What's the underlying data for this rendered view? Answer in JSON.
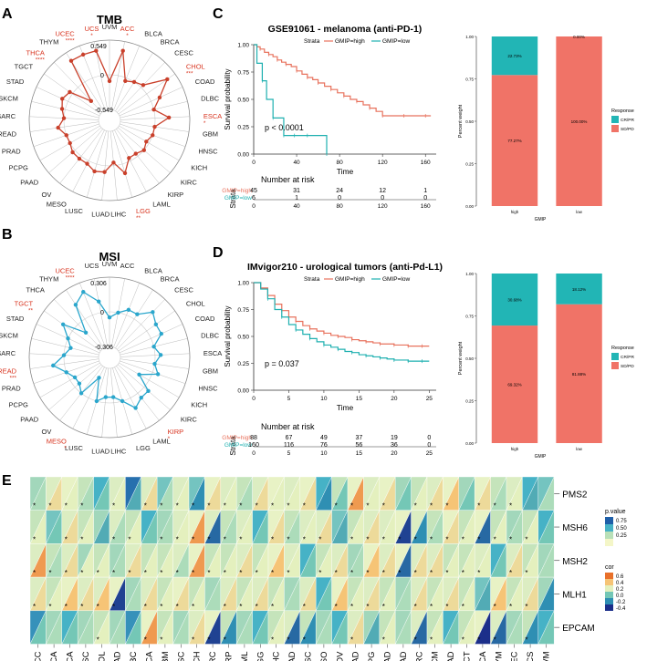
{
  "panel_labels": {
    "a": "A",
    "b": "B",
    "c": "C",
    "d": "D",
    "e": "E"
  },
  "colors": {
    "red": "#e8725d",
    "teal": "#1fb0b0",
    "tmb_line": "#c9402b",
    "msi_line": "#2aa6cc",
    "label_red": "#d8341f",
    "bar_red": "#f07367",
    "bar_teal": "#22b5b5"
  },
  "chart_data": [
    {
      "id": "tmb",
      "type": "radar",
      "title": "TMB",
      "range": [
        -0.549,
        0.549
      ],
      "ring_labels": [
        "-0.549",
        "0",
        "0.549"
      ],
      "categories": [
        "UVM",
        "ACC",
        "BLCA",
        "BRCA",
        "CESC",
        "CHOL",
        "COAD",
        "DLBC",
        "ESCA",
        "GBM",
        "HNSC",
        "KICH",
        "KIRC",
        "KIRP",
        "LAML",
        "LGG",
        "LIHC",
        "LUAD",
        "LUSC",
        "MESO",
        "OV",
        "PAAD",
        "PCPG",
        "PRAD",
        "READ",
        "SARC",
        "SKCM",
        "STAD",
        "TGCT",
        "THCA",
        "THYM",
        "UCEC",
        "UCS"
      ],
      "values": [
        -0.1,
        0.4,
        -0.05,
        0.0,
        0.05,
        0.4,
        0.15,
        0.0,
        0.22,
        0.0,
        0.0,
        -0.05,
        0.0,
        -0.05,
        -0.05,
        0.15,
        -0.05,
        0.1,
        0.12,
        0.05,
        0.05,
        0.05,
        0.0,
        0.0,
        0.1,
        0.0,
        0.05,
        0.1,
        0.05,
        -0.3,
        0.4,
        0.4,
        0.4
      ],
      "significant": {
        "ACC": "*",
        "CHOL": "***",
        "ESCA": "*",
        "LGG": "**",
        "THCA": "****",
        "UCEC": "****",
        "UCS": "*"
      }
    },
    {
      "id": "msi",
      "type": "radar",
      "title": "MSI",
      "range": [
        -0.306,
        0.306
      ],
      "ring_labels": [
        "-0.306",
        "0",
        "0.306"
      ],
      "categories": [
        "UVM",
        "ACC",
        "BLCA",
        "BRCA",
        "CESC",
        "CHOL",
        "COAD",
        "DLBC",
        "ESCA",
        "GBM",
        "HNSC",
        "KICH",
        "KIRC",
        "KIRP",
        "LAML",
        "LGG",
        "LIHC",
        "LUAD",
        "LUSC",
        "MESO",
        "OV",
        "PAAD",
        "PCPG",
        "PRAD",
        "READ",
        "SARC",
        "SKCM",
        "STAD",
        "TGCT",
        "THCA",
        "THYM",
        "UCEC",
        "UCS"
      ],
      "values": [
        -0.05,
        0.0,
        0.05,
        0.05,
        0.15,
        0.1,
        0.1,
        0.0,
        0.05,
        0.0,
        0.05,
        -0.1,
        0.05,
        0.05,
        0.1,
        0.0,
        -0.05,
        -0.05,
        0.0,
        -0.2,
        0.0,
        -0.05,
        -0.05,
        0.0,
        0.1,
        0.0,
        -0.05,
        0.0,
        0.1,
        -0.1,
        0.15,
        0.22,
        0.1
      ],
      "significant": {
        "KIRP": "*",
        "MESO": "*",
        "READ": "***",
        "TGCT": "**",
        "UCEC": "****"
      }
    },
    {
      "id": "km_c",
      "type": "line",
      "title": "GSE91061 - melanoma (anti-PD-1)",
      "legend_title": "Strata",
      "legend": [
        "GMIP=high",
        "GMIP=low"
      ],
      "xlabel": "Time",
      "ylabel": "Survival probability",
      "xlim": [
        0,
        170
      ],
      "ylim": [
        0,
        1
      ],
      "xticks": [
        "0",
        "40",
        "80",
        "120",
        "160"
      ],
      "yticks": [
        "0.00",
        "0.25",
        "0.50",
        "0.75",
        "1.00"
      ],
      "pvalue": "p < 0.0001",
      "series": [
        {
          "name": "GMIP=high",
          "x": [
            0,
            3,
            6,
            10,
            14,
            18,
            22,
            26,
            30,
            35,
            40,
            45,
            50,
            55,
            60,
            66,
            72,
            78,
            84,
            90,
            96,
            102,
            108,
            114,
            120,
            130,
            140,
            150,
            160,
            165
          ],
          "y": [
            1,
            0.98,
            0.96,
            0.93,
            0.91,
            0.89,
            0.86,
            0.84,
            0.82,
            0.8,
            0.76,
            0.73,
            0.7,
            0.68,
            0.65,
            0.62,
            0.59,
            0.56,
            0.53,
            0.5,
            0.48,
            0.45,
            0.42,
            0.39,
            0.35,
            0.35,
            0.35,
            0.35,
            0.35,
            0.35
          ]
        },
        {
          "name": "GMIP=low",
          "x": [
            0,
            3,
            8,
            12,
            18,
            22,
            28,
            33,
            38,
            45,
            50,
            60,
            68
          ],
          "y": [
            1,
            0.83,
            0.67,
            0.5,
            0.33,
            0.33,
            0.17,
            0.17,
            0.17,
            0.17,
            0.17,
            0.17,
            0.0
          ]
        }
      ],
      "risk_table": {
        "title": "Number at risk",
        "row_label": "Strata",
        "rows": [
          {
            "name": "GMIP=high",
            "values": [
              "45",
              "31",
              "24",
              "12",
              "1"
            ]
          },
          {
            "name": "GMIP=low",
            "values": [
              "6",
              "1",
              "0",
              "0",
              "0"
            ]
          }
        ]
      }
    },
    {
      "id": "bar_c",
      "type": "bar",
      "xlabel": "GMIP",
      "ylabel": "Percent weight",
      "categories": [
        "high",
        "low"
      ],
      "yticks": [
        "0.00",
        "0.25",
        "0.50",
        "0.75",
        "1.00"
      ],
      "series": [
        {
          "name": "SD/PD",
          "values": [
            77.27,
            100.0
          ],
          "labels": [
            "77.27%",
            "100.00%"
          ]
        },
        {
          "name": "CR/PR",
          "values": [
            22.73,
            0.0
          ],
          "labels": [
            "22.73%",
            "0.00%"
          ]
        }
      ],
      "legend_title": "Response",
      "legend": [
        "CR/PR",
        "SD/PD"
      ]
    },
    {
      "id": "km_d",
      "type": "line",
      "title": "IMvigor210 - urological tumors (anti-Pd-L1)",
      "legend_title": "Strata",
      "legend": [
        "GMIP=high",
        "GMIP=low"
      ],
      "xlabel": "Time",
      "ylabel": "Survival probability",
      "xlim": [
        0,
        26
      ],
      "ylim": [
        0,
        1
      ],
      "xticks": [
        "0",
        "5",
        "10",
        "15",
        "20",
        "25"
      ],
      "yticks": [
        "0.00",
        "0.25",
        "0.50",
        "0.75",
        "1.00"
      ],
      "pvalue": "p = 0.037",
      "series": [
        {
          "name": "GMIP=high",
          "x": [
            0,
            1,
            2,
            3,
            4,
            5,
            6,
            7,
            8,
            9,
            10,
            11,
            12,
            13,
            14,
            15,
            16,
            17,
            18,
            19,
            20,
            21,
            22,
            23,
            24,
            25
          ],
          "y": [
            1,
            0.95,
            0.88,
            0.8,
            0.74,
            0.68,
            0.64,
            0.6,
            0.57,
            0.55,
            0.53,
            0.51,
            0.5,
            0.49,
            0.47,
            0.46,
            0.45,
            0.44,
            0.43,
            0.43,
            0.42,
            0.42,
            0.41,
            0.41,
            0.41,
            0.41
          ]
        },
        {
          "name": "GMIP=low",
          "x": [
            0,
            1,
            2,
            3,
            4,
            5,
            6,
            7,
            8,
            9,
            10,
            11,
            12,
            13,
            14,
            15,
            16,
            17,
            18,
            19,
            20,
            21,
            22,
            23,
            24,
            25
          ],
          "y": [
            1,
            0.94,
            0.85,
            0.75,
            0.68,
            0.61,
            0.56,
            0.52,
            0.48,
            0.45,
            0.42,
            0.4,
            0.38,
            0.36,
            0.35,
            0.33,
            0.32,
            0.31,
            0.3,
            0.29,
            0.28,
            0.28,
            0.27,
            0.27,
            0.27,
            0.27
          ]
        }
      ],
      "risk_table": {
        "title": "Number at risk",
        "row_label": "Strata",
        "rows": [
          {
            "name": "GMIP=high",
            "values": [
              "88",
              "67",
              "49",
              "37",
              "19",
              "0"
            ]
          },
          {
            "name": "GMIP=low",
            "values": [
              "160",
              "116",
              "76",
              "56",
              "36",
              "0"
            ]
          }
        ]
      }
    },
    {
      "id": "bar_d",
      "type": "bar",
      "xlabel": "GMIP",
      "ylabel": "Percent weight",
      "categories": [
        "high",
        "low"
      ],
      "yticks": [
        "0.00",
        "0.25",
        "0.50",
        "0.75",
        "1.00"
      ],
      "series": [
        {
          "name": "SD/PD",
          "values": [
            69.32,
            81.88
          ],
          "labels": [
            "69.32%",
            "81.88%"
          ]
        },
        {
          "name": "CR/PR",
          "values": [
            30.68,
            18.12
          ],
          "labels": [
            "30.68%",
            "18.12%"
          ]
        }
      ],
      "legend_title": "Response",
      "legend": [
        "CR/PR",
        "SD/PD"
      ]
    },
    {
      "id": "heat_e",
      "type": "heatmap",
      "columns": [
        "ACC",
        "BLCA",
        "BRCA",
        "CESC",
        "CHOL",
        "COAD",
        "DLBC",
        "ESCA",
        "GBM",
        "HNSC",
        "KICH",
        "KIRC",
        "KIRP",
        "LAML",
        "LGG",
        "LIHC",
        "LUAD",
        "LUSC",
        "MESO",
        "OV",
        "PAAD",
        "PCPG",
        "PRAD",
        "READ",
        "SARC",
        "SKCM",
        "STAD",
        "TGCT",
        "THCA",
        "THYM",
        "UCEC",
        "UCS",
        "UVM"
      ],
      "rows": [
        "PMS2",
        "MSH6",
        "MSH2",
        "MLH1",
        "EPCAM"
      ],
      "cor": [
        [
          0.1,
          0.3,
          0.2,
          0.1,
          0.0,
          0.2,
          -0.1,
          0.3,
          0.1,
          0.2,
          -0.2,
          0.3,
          0.2,
          0.1,
          0.3,
          0.2,
          0.2,
          0.3,
          -0.2,
          0.0,
          0.5,
          0.2,
          0.3,
          0.0,
          0.2,
          0.3,
          0.4,
          0.0,
          0.3,
          0.1,
          0.2,
          -0.1,
          0.1
        ],
        [
          0.2,
          0.0,
          0.3,
          0.2,
          -0.1,
          0.1,
          0.2,
          0.0,
          0.1,
          0.2,
          0.5,
          -0.3,
          0.1,
          0.2,
          0.0,
          0.3,
          0.1,
          0.2,
          0.3,
          -0.1,
          0.2,
          0.3,
          0.2,
          -0.4,
          -0.2,
          0.1,
          0.3,
          0.2,
          -0.3,
          0.2,
          0.1,
          0.2,
          0.0
        ],
        [
          0.5,
          0.1,
          0.3,
          0.2,
          0.2,
          0.1,
          0.3,
          0.2,
          0.2,
          0.1,
          0.5,
          0.2,
          0.2,
          0.3,
          0.2,
          0.4,
          0.2,
          0.0,
          0.2,
          0.3,
          0.1,
          0.4,
          0.3,
          -0.3,
          0.3,
          0.3,
          0.2,
          0.2,
          0.2,
          0.0,
          0.3,
          0.2,
          0.1
        ],
        [
          0.3,
          0.2,
          0.4,
          0.3,
          0.4,
          -0.4,
          0.1,
          0.3,
          0.2,
          0.3,
          0.2,
          0.1,
          0.3,
          0.2,
          0.3,
          0.2,
          0.1,
          0.3,
          0.0,
          0.4,
          0.2,
          0.3,
          0.2,
          0.1,
          0.3,
          0.2,
          0.3,
          0.2,
          -0.1,
          0.4,
          0.2,
          0.3,
          -0.2
        ],
        [
          0.0,
          0.1,
          0.0,
          0.1,
          0.2,
          0.1,
          0.0,
          0.5,
          0.2,
          0.1,
          0.3,
          -0.4,
          -0.2,
          0.1,
          0.0,
          0.2,
          -0.3,
          -0.2,
          0.1,
          0.0,
          0.3,
          -0.1,
          0.2,
          0.1,
          -0.3,
          0.2,
          0.0,
          0.2,
          -0.5,
          -0.3,
          0.1,
          -0.2,
          0.0
        ]
      ],
      "pval": [
        [
          0.3,
          0.1,
          0.05,
          0.2,
          0.5,
          0.1,
          0.7,
          0.1,
          0.4,
          0.1,
          0.4,
          0.05,
          0.1,
          0.2,
          0.1,
          0.05,
          0.1,
          0.05,
          0.5,
          0.2,
          0.05,
          0.1,
          0.05,
          0.3,
          0.2,
          0.1,
          0.05,
          0.3,
          0.05,
          0.2,
          0.1,
          0.5,
          0.4
        ],
        [
          0.2,
          0.4,
          0.1,
          0.2,
          0.3,
          0.1,
          0.2,
          0.5,
          0.3,
          0.1,
          0.05,
          0.1,
          0.2,
          0.1,
          0.5,
          0.05,
          0.2,
          0.1,
          0.1,
          0.4,
          0.2,
          0.1,
          0.1,
          0.05,
          0.1,
          0.2,
          0.05,
          0.2,
          0.05,
          0.2,
          0.3,
          0.2,
          0.5
        ],
        [
          0.1,
          0.2,
          0.1,
          0.3,
          0.2,
          0.3,
          0.1,
          0.2,
          0.2,
          0.1,
          0.05,
          0.2,
          0.2,
          0.1,
          0.2,
          0.05,
          0.1,
          0.5,
          0.2,
          0.1,
          0.3,
          0.05,
          0.1,
          0.05,
          0.1,
          0.1,
          0.2,
          0.2,
          0.1,
          0.5,
          0.1,
          0.2,
          0.3
        ],
        [
          0.1,
          0.2,
          0.05,
          0.1,
          0.1,
          0.05,
          0.3,
          0.1,
          0.2,
          0.05,
          0.2,
          0.3,
          0.1,
          0.2,
          0.1,
          0.2,
          0.3,
          0.1,
          0.5,
          0.05,
          0.2,
          0.1,
          0.2,
          0.3,
          0.1,
          0.2,
          0.1,
          0.2,
          0.4,
          0.05,
          0.2,
          0.1,
          0.3
        ],
        [
          0.6,
          0.3,
          0.5,
          0.3,
          0.2,
          0.3,
          0.6,
          0.05,
          0.2,
          0.3,
          0.1,
          0.05,
          0.2,
          0.3,
          0.5,
          0.2,
          0.1,
          0.2,
          0.3,
          0.5,
          0.1,
          0.3,
          0.2,
          0.3,
          0.1,
          0.2,
          0.5,
          0.2,
          0.05,
          0.1,
          0.3,
          0.2,
          0.5
        ]
      ],
      "stars": [
        [
          1,
          1,
          1,
          1,
          0,
          1,
          0,
          1,
          1,
          1,
          1,
          1,
          1,
          1,
          1,
          1,
          1,
          1,
          0,
          1,
          1,
          1,
          1,
          0,
          1,
          1,
          1,
          0,
          1,
          1,
          1,
          0,
          0
        ],
        [
          1,
          0,
          1,
          1,
          0,
          1,
          1,
          0,
          1,
          1,
          1,
          1,
          1,
          1,
          0,
          1,
          1,
          1,
          1,
          0,
          1,
          1,
          1,
          1,
          1,
          1,
          1,
          1,
          1,
          1,
          1,
          1,
          0
        ],
        [
          1,
          1,
          1,
          1,
          1,
          1,
          1,
          1,
          1,
          1,
          1,
          1,
          1,
          1,
          1,
          1,
          1,
          0,
          1,
          1,
          1,
          1,
          1,
          1,
          1,
          1,
          1,
          1,
          1,
          0,
          1,
          1,
          0
        ],
        [
          1,
          1,
          1,
          1,
          1,
          1,
          0,
          1,
          1,
          1,
          1,
          0,
          1,
          1,
          1,
          1,
          0,
          1,
          0,
          1,
          1,
          1,
          1,
          0,
          1,
          1,
          1,
          1,
          0,
          1,
          1,
          1,
          0
        ],
        [
          0,
          0,
          0,
          0,
          1,
          0,
          0,
          1,
          1,
          0,
          1,
          1,
          1,
          0,
          0,
          1,
          1,
          1,
          0,
          0,
          1,
          0,
          1,
          0,
          1,
          1,
          0,
          1,
          1,
          1,
          0,
          1,
          0
        ]
      ],
      "legend_pvalue": {
        "title": "p.value",
        "ticks": [
          "0.75",
          "0.50",
          "0.25"
        ]
      },
      "legend_cor": {
        "title": "cor",
        "ticks": [
          "0.6",
          "0.4",
          "0.2",
          "0.0",
          "-0.2",
          "-0.4"
        ]
      }
    }
  ]
}
